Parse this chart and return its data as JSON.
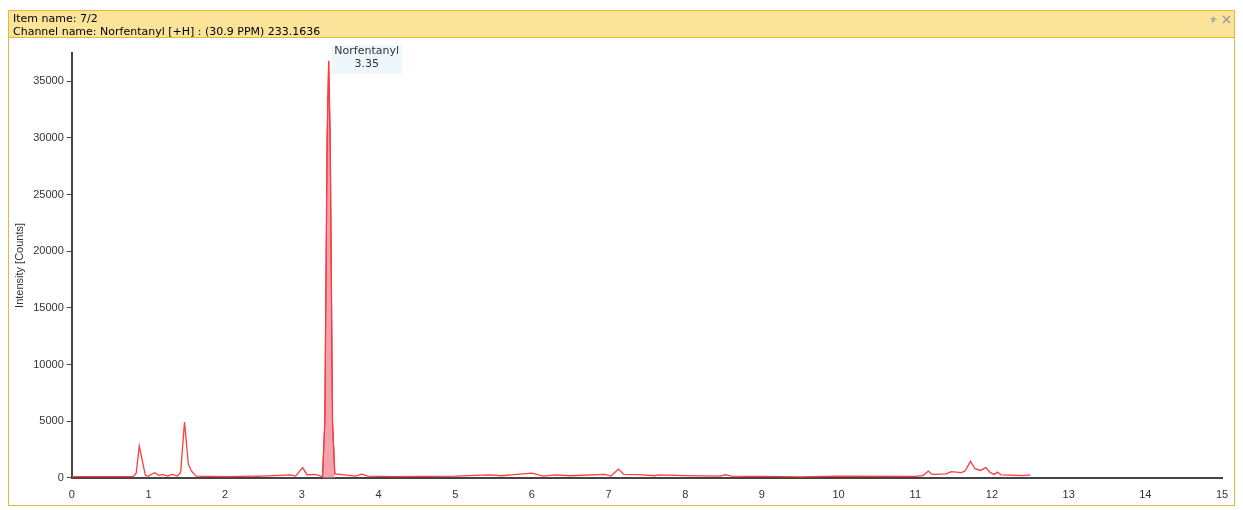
{
  "chart_data": {
    "type": "line",
    "title": "Item name: 7/2",
    "subtitle": "Channel name: Norfentanyl [+H] : (30.9 PPM) 233.1636",
    "ylabel": "Intensity [Counts]",
    "xlim": [
      0,
      15
    ],
    "xticks": [
      0,
      1,
      2,
      3,
      4,
      5,
      6,
      7,
      8,
      9,
      10,
      11,
      12,
      13,
      14,
      15
    ],
    "ylim": [
      0,
      37500
    ],
    "yticks": [
      0,
      5000,
      10000,
      15000,
      20000,
      25000,
      30000,
      35000
    ],
    "grid": false,
    "legend": false,
    "annotations": [
      {
        "text": "Norfentanyl\n3.35",
        "x": 3.35,
        "y": 36800
      }
    ],
    "series": [
      {
        "type": "line",
        "color": "#ff3b3b",
        "x": [
          0,
          0.8,
          0.84,
          0.88,
          0.92,
          0.96,
          1.0,
          1.08,
          1.14,
          1.18,
          1.25,
          1.31,
          1.38,
          1.42,
          1.47,
          1.52,
          1.56,
          1.62,
          2.0,
          2.5,
          2.85,
          2.92,
          3.01,
          3.07,
          3.15,
          3.2,
          3.27,
          3.3,
          3.33,
          3.35,
          3.37,
          3.4,
          3.43,
          3.5,
          3.7,
          3.78,
          3.86,
          4.2,
          5.0,
          5.45,
          5.6,
          6.0,
          6.15,
          6.3,
          6.5,
          6.95,
          7.03,
          7.13,
          7.2,
          7.4,
          7.6,
          7.65,
          8.0,
          8.45,
          8.53,
          8.6,
          9.5,
          10.0,
          11.0,
          11.1,
          11.17,
          11.22,
          11.4,
          11.47,
          11.6,
          11.65,
          11.72,
          11.78,
          11.85,
          11.92,
          11.98,
          12.03,
          12.07,
          12.12,
          12.4,
          12.5
        ],
        "values": [
          100,
          100,
          400,
          2800,
          1500,
          200,
          150,
          450,
          200,
          300,
          150,
          300,
          150,
          500,
          4930,
          1200,
          600,
          150,
          100,
          150,
          250,
          150,
          900,
          250,
          300,
          250,
          100,
          5000,
          30000,
          36800,
          30000,
          5000,
          350,
          300,
          150,
          330,
          150,
          100,
          150,
          250,
          180,
          420,
          150,
          250,
          180,
          300,
          150,
          770,
          300,
          280,
          180,
          250,
          200,
          150,
          270,
          150,
          80,
          150,
          130,
          200,
          600,
          300,
          350,
          550,
          450,
          600,
          1450,
          800,
          650,
          900,
          450,
          300,
          500,
          250,
          200,
          250
        ]
      },
      {
        "type": "area",
        "color": "#f2a3ad",
        "x": [
          3.27,
          3.3,
          3.33,
          3.35,
          3.37,
          3.4,
          3.43
        ],
        "values": [
          100,
          5000,
          30000,
          36800,
          30000,
          5000,
          350
        ]
      }
    ]
  }
}
